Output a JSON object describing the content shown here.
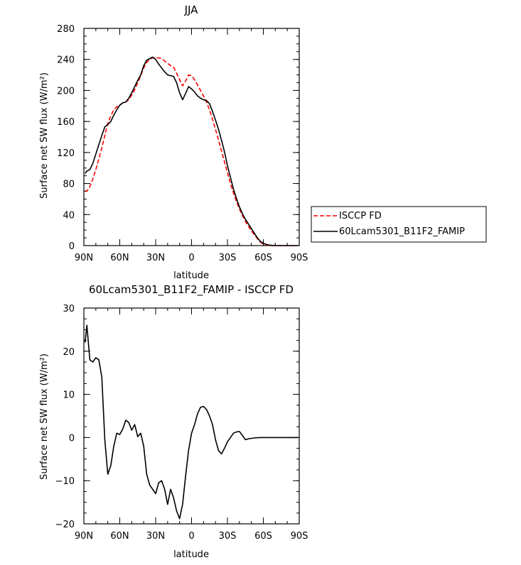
{
  "chart_data": [
    {
      "type": "line",
      "title": "JJA",
      "xlabel": "latitude",
      "ylabel": "Surface net SW flux (W/m²)",
      "xlim": [
        90,
        -90
      ],
      "ylim": [
        0,
        280
      ],
      "xticks": [
        90,
        60,
        30,
        0,
        -30,
        -60,
        -90
      ],
      "xtick_labels": [
        "90N",
        "60N",
        "30N",
        "0",
        "30S",
        "60S",
        "90S"
      ],
      "yticks": [
        0,
        40,
        80,
        120,
        160,
        200,
        240,
        280
      ],
      "ytick_labels": [
        "0",
        "40",
        "80",
        "120",
        "160",
        "200",
        "240",
        "280"
      ],
      "legend": "outside-right",
      "series": [
        {
          "name": "ISCCP FD",
          "color": "#ff0000",
          "dash": "dashed",
          "x": [
            89,
            87.5,
            85,
            82.5,
            80,
            77.5,
            75,
            72.5,
            70,
            67.5,
            65,
            62.5,
            60,
            57.5,
            55,
            52.5,
            50,
            47.5,
            45,
            42.5,
            40,
            37.5,
            35,
            32.5,
            30,
            27.5,
            25,
            22.5,
            20,
            17.5,
            15,
            12.5,
            10,
            7.5,
            5,
            2.5,
            0,
            -2.5,
            -5,
            -7.5,
            -10,
            -12.5,
            -15,
            -17.5,
            -20,
            -22.5,
            -25,
            -27.5,
            -30,
            -32.5,
            -35,
            -37.5,
            -40,
            -42.5,
            -45,
            -47.5,
            -50,
            -52.5,
            -55,
            -57.5,
            -60,
            -62.5,
            -65,
            -67.5,
            -70,
            -72.5,
            -75,
            -77.5,
            -80,
            -82.5,
            -85,
            -87.5,
            -89
          ],
          "y": [
            71,
            70,
            76,
            86,
            98,
            112,
            126,
            142,
            158,
            167,
            175,
            179,
            181,
            184,
            185,
            188,
            194,
            201,
            210,
            219,
            229,
            236,
            240,
            242,
            242,
            242,
            241,
            238,
            235,
            232,
            230,
            222,
            214,
            206,
            212,
            220,
            219,
            214,
            207,
            200,
            193,
            185,
            175,
            163,
            150,
            136,
            122,
            108,
            94,
            80,
            68,
            57,
            47,
            39,
            31,
            25,
            19,
            14,
            9,
            4.5,
            2,
            0.8,
            0.3,
            0.1,
            0,
            0,
            0,
            0,
            0,
            0,
            0,
            0,
            0
          ]
        },
        {
          "name": "60Lcam5301_B11F2_FAMIP",
          "color": "#000000",
          "dash": "solid",
          "x": [
            89,
            87.5,
            85,
            82.5,
            80,
            77.5,
            75,
            72.5,
            70,
            67.5,
            65,
            62.5,
            60,
            57.5,
            55,
            52.5,
            50,
            47.5,
            45,
            42.5,
            40,
            37.5,
            35,
            32.5,
            30,
            27.5,
            25,
            22.5,
            20,
            17.5,
            15,
            12.5,
            10,
            7.5,
            5,
            2.5,
            0,
            -2.5,
            -5,
            -7.5,
            -10,
            -12.5,
            -15,
            -17.5,
            -20,
            -22.5,
            -25,
            -27.5,
            -30,
            -32.5,
            -35,
            -37.5,
            -40,
            -42.5,
            -45,
            -47.5,
            -50,
            -52.5,
            -55,
            -57.5,
            -60,
            -62.5,
            -65,
            -67.5,
            -70,
            -72.5,
            -75,
            -77.5,
            -80,
            -82.5,
            -85,
            -87.5,
            -89
          ],
          "y": [
            93,
            96,
            98,
            106,
            118,
            130,
            142,
            153,
            156,
            160,
            168,
            175,
            181,
            184,
            185,
            190,
            197,
            205,
            213,
            220,
            232,
            239,
            241,
            243,
            240,
            234,
            229,
            224,
            220,
            219,
            218,
            210,
            197,
            188,
            196,
            205,
            202,
            198,
            193,
            190,
            188,
            187,
            183,
            173,
            162,
            150,
            136,
            121,
            103,
            88,
            73,
            61,
            50,
            41,
            34,
            28,
            22,
            16,
            10,
            5.5,
            3,
            1.5,
            0.7,
            0.3,
            0.1,
            0,
            0,
            0,
            0,
            0,
            0,
            0,
            0
          ]
        }
      ]
    },
    {
      "type": "line",
      "title": "60Lcam5301_B11F2_FAMIP - ISCCP FD",
      "xlabel": "latitude",
      "ylabel": "Surface net SW flux (W/m²)",
      "xlim": [
        90,
        -90
      ],
      "ylim": [
        -20,
        30
      ],
      "xticks": [
        90,
        60,
        30,
        0,
        -30,
        -60,
        -90
      ],
      "xtick_labels": [
        "90N",
        "60N",
        "30N",
        "0",
        "30S",
        "60S",
        "90S"
      ],
      "yticks": [
        -20,
        -10,
        0,
        10,
        20,
        30
      ],
      "ytick_labels": [
        "−20",
        "−10",
        "0",
        "10",
        "20",
        "30"
      ],
      "series": [
        {
          "color": "#000000",
          "dash": "solid",
          "x": [
            89,
            87.5,
            85,
            82.5,
            80,
            77.5,
            75,
            72.5,
            70,
            67.5,
            65,
            62.5,
            60,
            57.5,
            55,
            52.5,
            50,
            47.5,
            45,
            42.5,
            40,
            37.5,
            35,
            32.5,
            30,
            27.5,
            25,
            22.5,
            20,
            17.5,
            15,
            12.5,
            10,
            7.5,
            5,
            2.5,
            0,
            -2.5,
            -5,
            -7.5,
            -10,
            -12.5,
            -15,
            -17.5,
            -20,
            -22.5,
            -25,
            -27.5,
            -30,
            -32.5,
            -35,
            -37.5,
            -40,
            -42.5,
            -45,
            -47.5,
            -50,
            -52.5,
            -55,
            -57.5,
            -60,
            -62.5,
            -65,
            -67.5,
            -70,
            -72.5,
            -75,
            -77.5,
            -80,
            -82.5,
            -85,
            -87.5,
            -89
          ],
          "y": [
            22,
            26,
            18,
            17.5,
            18.5,
            18,
            14,
            -0.5,
            -8.5,
            -6.5,
            -2,
            1,
            0.7,
            2,
            4,
            3.5,
            1.7,
            3,
            0.2,
            1,
            -2,
            -8.5,
            -11,
            -12,
            -13,
            -10.5,
            -10,
            -12,
            -15.5,
            -12,
            -14,
            -17,
            -18.8,
            -15.5,
            -9,
            -3,
            1,
            3,
            5.5,
            7,
            7.2,
            6.5,
            5,
            3,
            -0.5,
            -3,
            -3.8,
            -2.5,
            -1,
            0,
            1,
            1.3,
            1.4,
            0.5,
            -0.5,
            -0.3,
            -0.2,
            -0.1,
            -0.05,
            0,
            0,
            0,
            0,
            0,
            0,
            0,
            0,
            0,
            0,
            0,
            0,
            0,
            0
          ]
        }
      ]
    }
  ]
}
